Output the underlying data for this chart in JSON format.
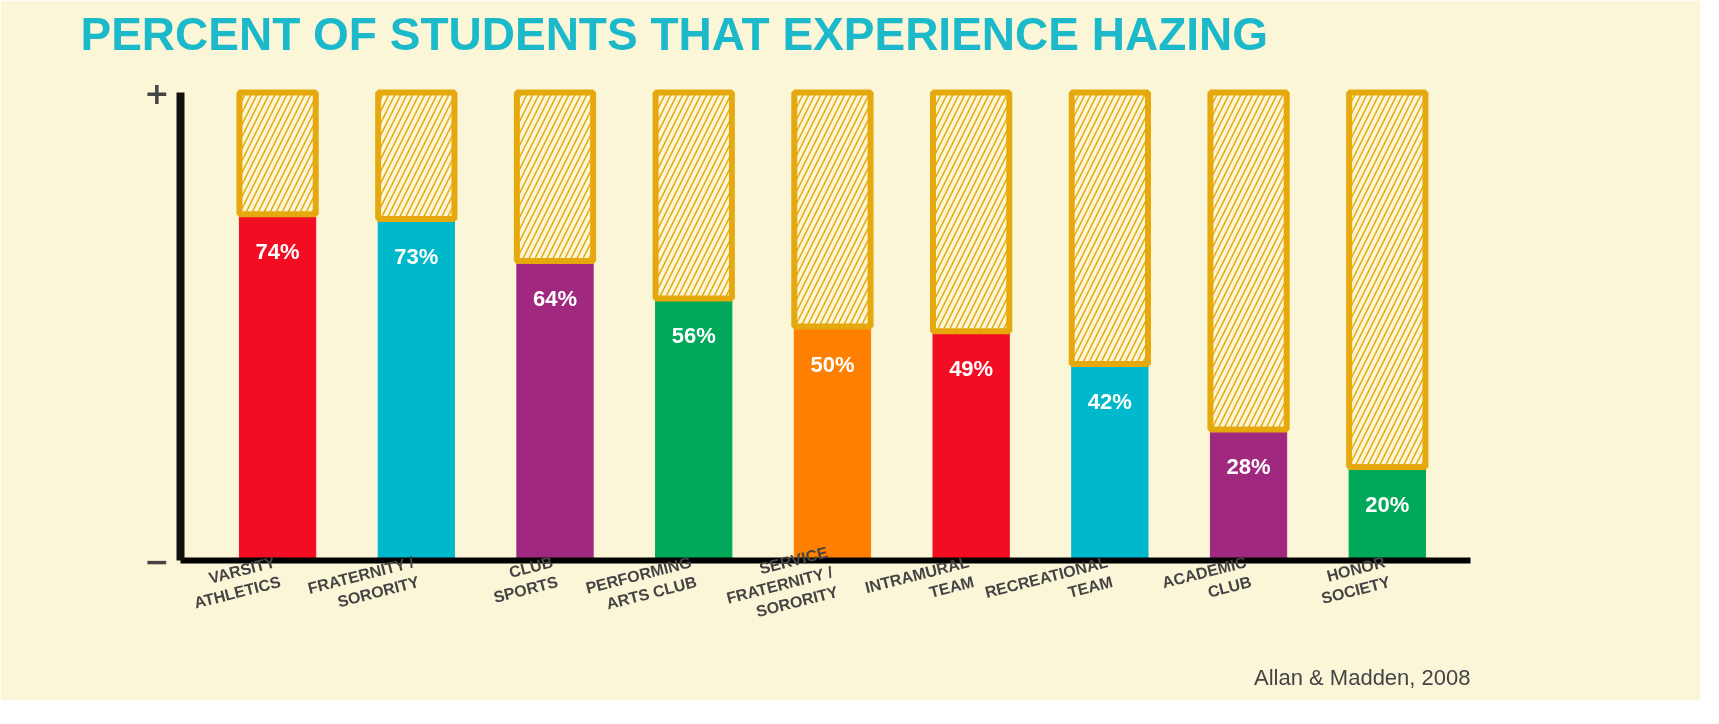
{
  "chart_data": {
    "type": "bar",
    "title": "PERCENT OF STUDENTS THAT EXPERIENCE HAZING",
    "stacked": true,
    "categories": [
      "VARSITY\nATHLETICS",
      "FRATERNITY /\nSORORITY",
      "CLUB\nSPORTS",
      "PERFORMING\nARTS CLUB",
      "SERVICE\nFRATERNITY /\nSORORITY",
      "INTRAMURAL\nTEAM",
      "RECREATIONAL\nTEAM",
      "ACADEMIC\nCLUB",
      "HONOR\nSOCIETY"
    ],
    "series": [
      {
        "colors": [
          "#f20d22",
          "#00b8cc",
          "#a0297f",
          "#00a859",
          "#ff7f00",
          "#f20d22",
          "#00b8cc",
          "#a0297f",
          "#00a859"
        ],
        "values": [
          74,
          73,
          64,
          56,
          50,
          49,
          42,
          28,
          20
        ],
        "value_labels": [
          "74%",
          "73%",
          "64%",
          "56%",
          "50%",
          "49%",
          "42%",
          "28%",
          "20%"
        ]
      },
      {
        "color": "#e5a90e",
        "values": [
          26,
          27,
          36,
          44,
          50,
          51,
          58,
          72,
          80
        ]
      }
    ],
    "annotations": [
      "+",
      "−",
      "Allan & Madden, 2008"
    ],
    "grid": false
  }
}
